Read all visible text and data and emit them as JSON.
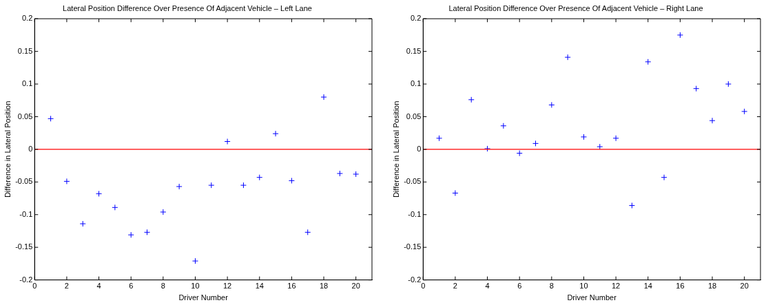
{
  "chart_data": [
    {
      "type": "scatter",
      "title": "Lateral Position Difference Over Presence Of Adjacent Vehicle – Left Lane",
      "xlabel": "Driver Number",
      "ylabel": "Difference in Lateral Position",
      "x": [
        1,
        2,
        3,
        4,
        5,
        6,
        7,
        8,
        9,
        10,
        11,
        12,
        13,
        14,
        15,
        16,
        17,
        18,
        19,
        20
      ],
      "series": [
        {
          "color": "#0000ff",
          "values": [
            0.047,
            -0.049,
            -0.114,
            -0.068,
            -0.089,
            -0.131,
            -0.127,
            -0.096,
            -0.057,
            -0.171,
            -0.055,
            0.012,
            -0.055,
            -0.043,
            0.024,
            -0.048,
            -0.127,
            0.08,
            -0.037,
            -0.038
          ]
        }
      ],
      "xlim": [
        0,
        21
      ],
      "xticks": [
        0,
        2,
        4,
        6,
        8,
        10,
        12,
        14,
        16,
        18,
        20
      ],
      "ylim": [
        -0.2,
        0.2
      ],
      "yticks": [
        -0.2,
        -0.15,
        -0.1,
        -0.05,
        0,
        0.05,
        0.1,
        0.15,
        0.2
      ],
      "ref_lines": [
        {
          "axis": "y",
          "value": 0,
          "color": "#ff0000"
        }
      ],
      "marker": "cross",
      "grid": false,
      "legend": false
    },
    {
      "type": "scatter",
      "title": "Lateral Position Difference Over Presence Of Adjacent Vehicle – Right Lane",
      "xlabel": "Driver Number",
      "ylabel": "Difference in Lateral Position",
      "x": [
        1,
        2,
        3,
        4,
        5,
        6,
        7,
        8,
        9,
        10,
        11,
        12,
        13,
        14,
        15,
        16,
        17,
        18,
        19,
        20
      ],
      "series": [
        {
          "color": "#0000ff",
          "values": [
            0.017,
            -0.067,
            0.076,
            0.001,
            0.036,
            -0.006,
            0.009,
            0.068,
            0.141,
            0.019,
            0.004,
            0.017,
            -0.086,
            0.134,
            -0.043,
            0.175,
            0.093,
            0.044,
            0.1,
            0.058
          ]
        }
      ],
      "xlim": [
        0,
        21
      ],
      "xticks": [
        0,
        2,
        4,
        6,
        8,
        10,
        12,
        14,
        16,
        18,
        20
      ],
      "ylim": [
        -0.2,
        0.2
      ],
      "yticks": [
        -0.2,
        -0.15,
        -0.1,
        -0.05,
        0,
        0.05,
        0.1,
        0.15,
        0.2
      ],
      "ref_lines": [
        {
          "axis": "y",
          "value": 0,
          "color": "#ff0000"
        }
      ],
      "marker": "cross",
      "grid": false,
      "legend": false
    }
  ]
}
